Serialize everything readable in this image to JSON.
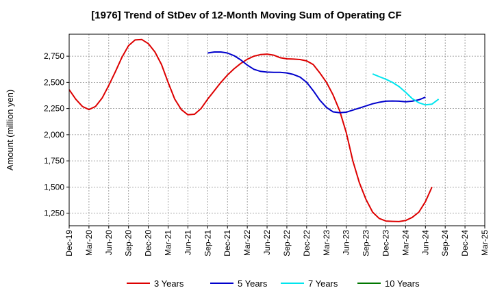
{
  "chart_data": {
    "type": "line",
    "title": "[1976]  Trend of StDev of 12-Month Moving Sum of Operating CF",
    "xlabel": "",
    "ylabel": "Amount (million yen)",
    "ylim": [
      1130,
      2960
    ],
    "yticks": [
      1250,
      1500,
      1750,
      2000,
      2250,
      2500,
      2750
    ],
    "ytick_labels": [
      "1,250",
      "1,500",
      "1,750",
      "2,000",
      "2,250",
      "2,500",
      "2,750"
    ],
    "x_labels": [
      "Dec-19",
      "Mar-20",
      "Jun-20",
      "Sep-20",
      "Dec-20",
      "Mar-21",
      "Jun-21",
      "Sep-21",
      "Dec-21",
      "Mar-22",
      "Jun-22",
      "Sep-22",
      "Dec-22",
      "Mar-23",
      "Jun-23",
      "Sep-23",
      "Dec-23",
      "Mar-24",
      "Jun-24",
      "Sep-24",
      "Dec-24",
      "Mar-25"
    ],
    "grid": true,
    "legend_position": "bottom",
    "series": [
      {
        "name": "3 Years",
        "color": "#dd0000",
        "start_index": 0,
        "values": [
          2430,
          2340,
          2270,
          2240,
          2270,
          2350,
          2470,
          2600,
          2740,
          2850,
          2905,
          2910,
          2870,
          2790,
          2670,
          2500,
          2340,
          2240,
          2190,
          2195,
          2250,
          2340,
          2420,
          2500,
          2570,
          2630,
          2680,
          2720,
          2750,
          2765,
          2770,
          2760,
          2735,
          2725,
          2722,
          2718,
          2705,
          2670,
          2590,
          2500,
          2380,
          2230,
          2020,
          1750,
          1540,
          1380,
          1260,
          1200,
          1175,
          1172,
          1170,
          1180,
          1210,
          1260,
          1360,
          1500
        ]
      },
      {
        "name": "5 Years",
        "color": "#0000cc",
        "start_index": 21,
        "values": [
          2780,
          2790,
          2790,
          2780,
          2755,
          2715,
          2665,
          2625,
          2605,
          2598,
          2596,
          2596,
          2590,
          2575,
          2550,
          2500,
          2420,
          2330,
          2260,
          2218,
          2210,
          2215,
          2235,
          2255,
          2275,
          2295,
          2310,
          2320,
          2322,
          2320,
          2315,
          2320,
          2333,
          2358
        ]
      },
      {
        "name": "7 Years",
        "color": "#00e5ee",
        "start_index": 46,
        "values": [
          2580,
          2555,
          2530,
          2500,
          2460,
          2405,
          2345,
          2305,
          2285,
          2292,
          2340
        ]
      },
      {
        "name": "10 Years",
        "color": "#007700",
        "start_index": 0,
        "values": []
      }
    ]
  }
}
